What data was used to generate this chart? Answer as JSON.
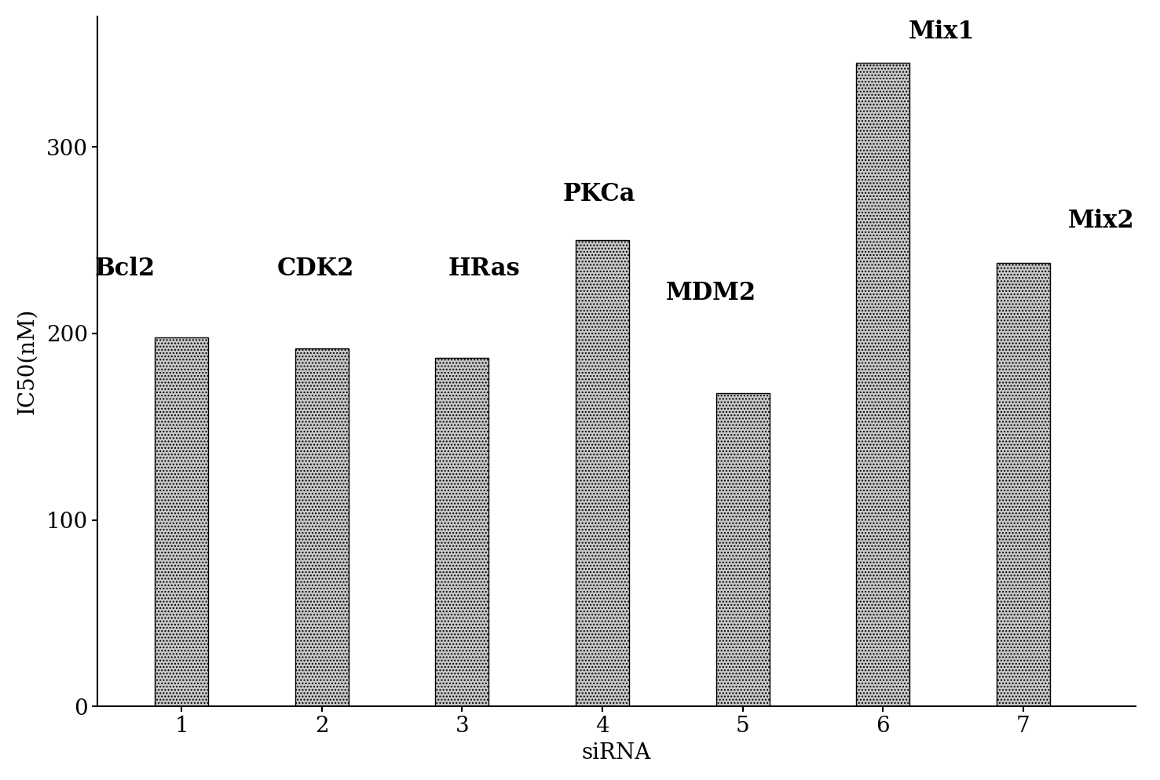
{
  "categories": [
    "1",
    "2",
    "3",
    "4",
    "5",
    "6",
    "7"
  ],
  "values": [
    198,
    192,
    187,
    250,
    168,
    345,
    238
  ],
  "labels": [
    "Bcl2",
    "CDK2",
    "HRas",
    "PKCa",
    "MDM2",
    "Mix1",
    "Mix2"
  ],
  "label_bold": [
    true,
    true,
    true,
    true,
    true,
    true,
    true
  ],
  "ylabel": "IC50(nM)",
  "xlabel": "siRNA",
  "ylim": [
    0,
    370
  ],
  "yticks": [
    0,
    100,
    200,
    300
  ],
  "bar_color": "#aaaaaa",
  "background_color": "#ffffff",
  "bar_width": 0.38,
  "label_fontsize": 22,
  "axis_label_fontsize": 20,
  "tick_fontsize": 20,
  "label_positions": [
    [
      0,
      -0.62,
      228,
      "left"
    ],
    [
      1,
      -0.32,
      228,
      "left"
    ],
    [
      2,
      -0.1,
      228,
      "left"
    ],
    [
      3,
      -0.28,
      268,
      "left"
    ],
    [
      4,
      -0.55,
      215,
      "left"
    ],
    [
      5,
      0.18,
      355,
      "left"
    ],
    [
      6,
      0.32,
      254,
      "left"
    ]
  ]
}
